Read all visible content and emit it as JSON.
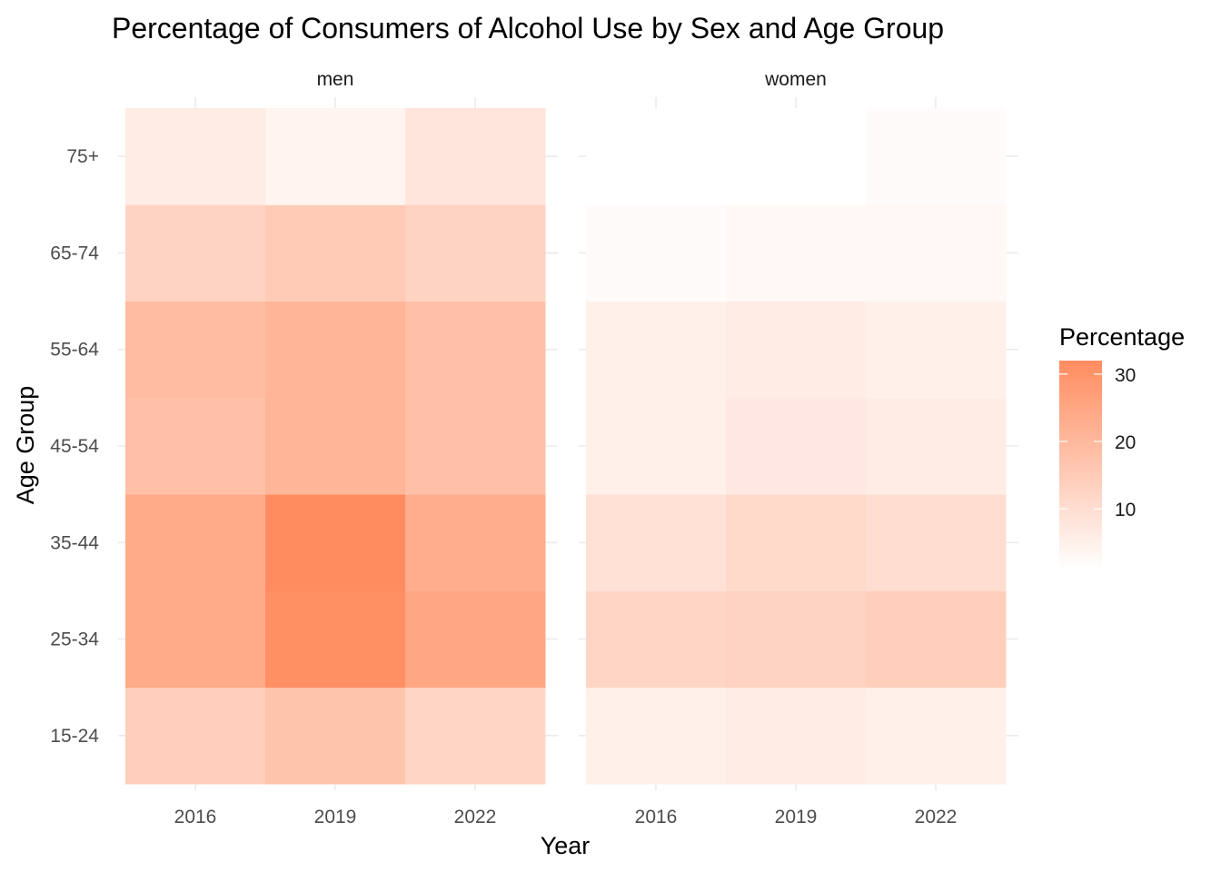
{
  "chart_data": {
    "type": "heatmap",
    "title": "Percentage of Consumers of Alcohol Use by Sex and Age Group",
    "xlabel": "Year",
    "ylabel": "Age Group",
    "x_categories": [
      "2016",
      "2019",
      "2022"
    ],
    "y_categories": [
      "15-24",
      "25-34",
      "35-44",
      "45-54",
      "55-64",
      "65-74",
      "75+"
    ],
    "facets": [
      {
        "name": "men",
        "values": {
          "2016": [
            14,
            24,
            24,
            18,
            19,
            13,
            6
          ],
          "2019": [
            17,
            31,
            32,
            21,
            21,
            15,
            4
          ],
          "2022": [
            12,
            25,
            23,
            18,
            18,
            13,
            8
          ]
        }
      },
      {
        "name": "women",
        "values": {
          "2016": [
            5,
            12,
            9,
            5,
            5,
            2,
            1
          ],
          "2019": [
            6,
            13,
            11,
            7,
            6,
            3,
            1
          ],
          "2022": [
            5,
            14,
            10,
            6,
            5,
            3,
            2
          ]
        }
      }
    ],
    "legend": {
      "title": "Percentage",
      "position": "right",
      "ticks": [
        "10",
        "20",
        "30"
      ],
      "tick_values": [
        10,
        20,
        30
      ],
      "min": 1,
      "max": 32,
      "low_color": "#FFFFFF",
      "high_color": "#FF8C5F"
    },
    "grid": true
  }
}
